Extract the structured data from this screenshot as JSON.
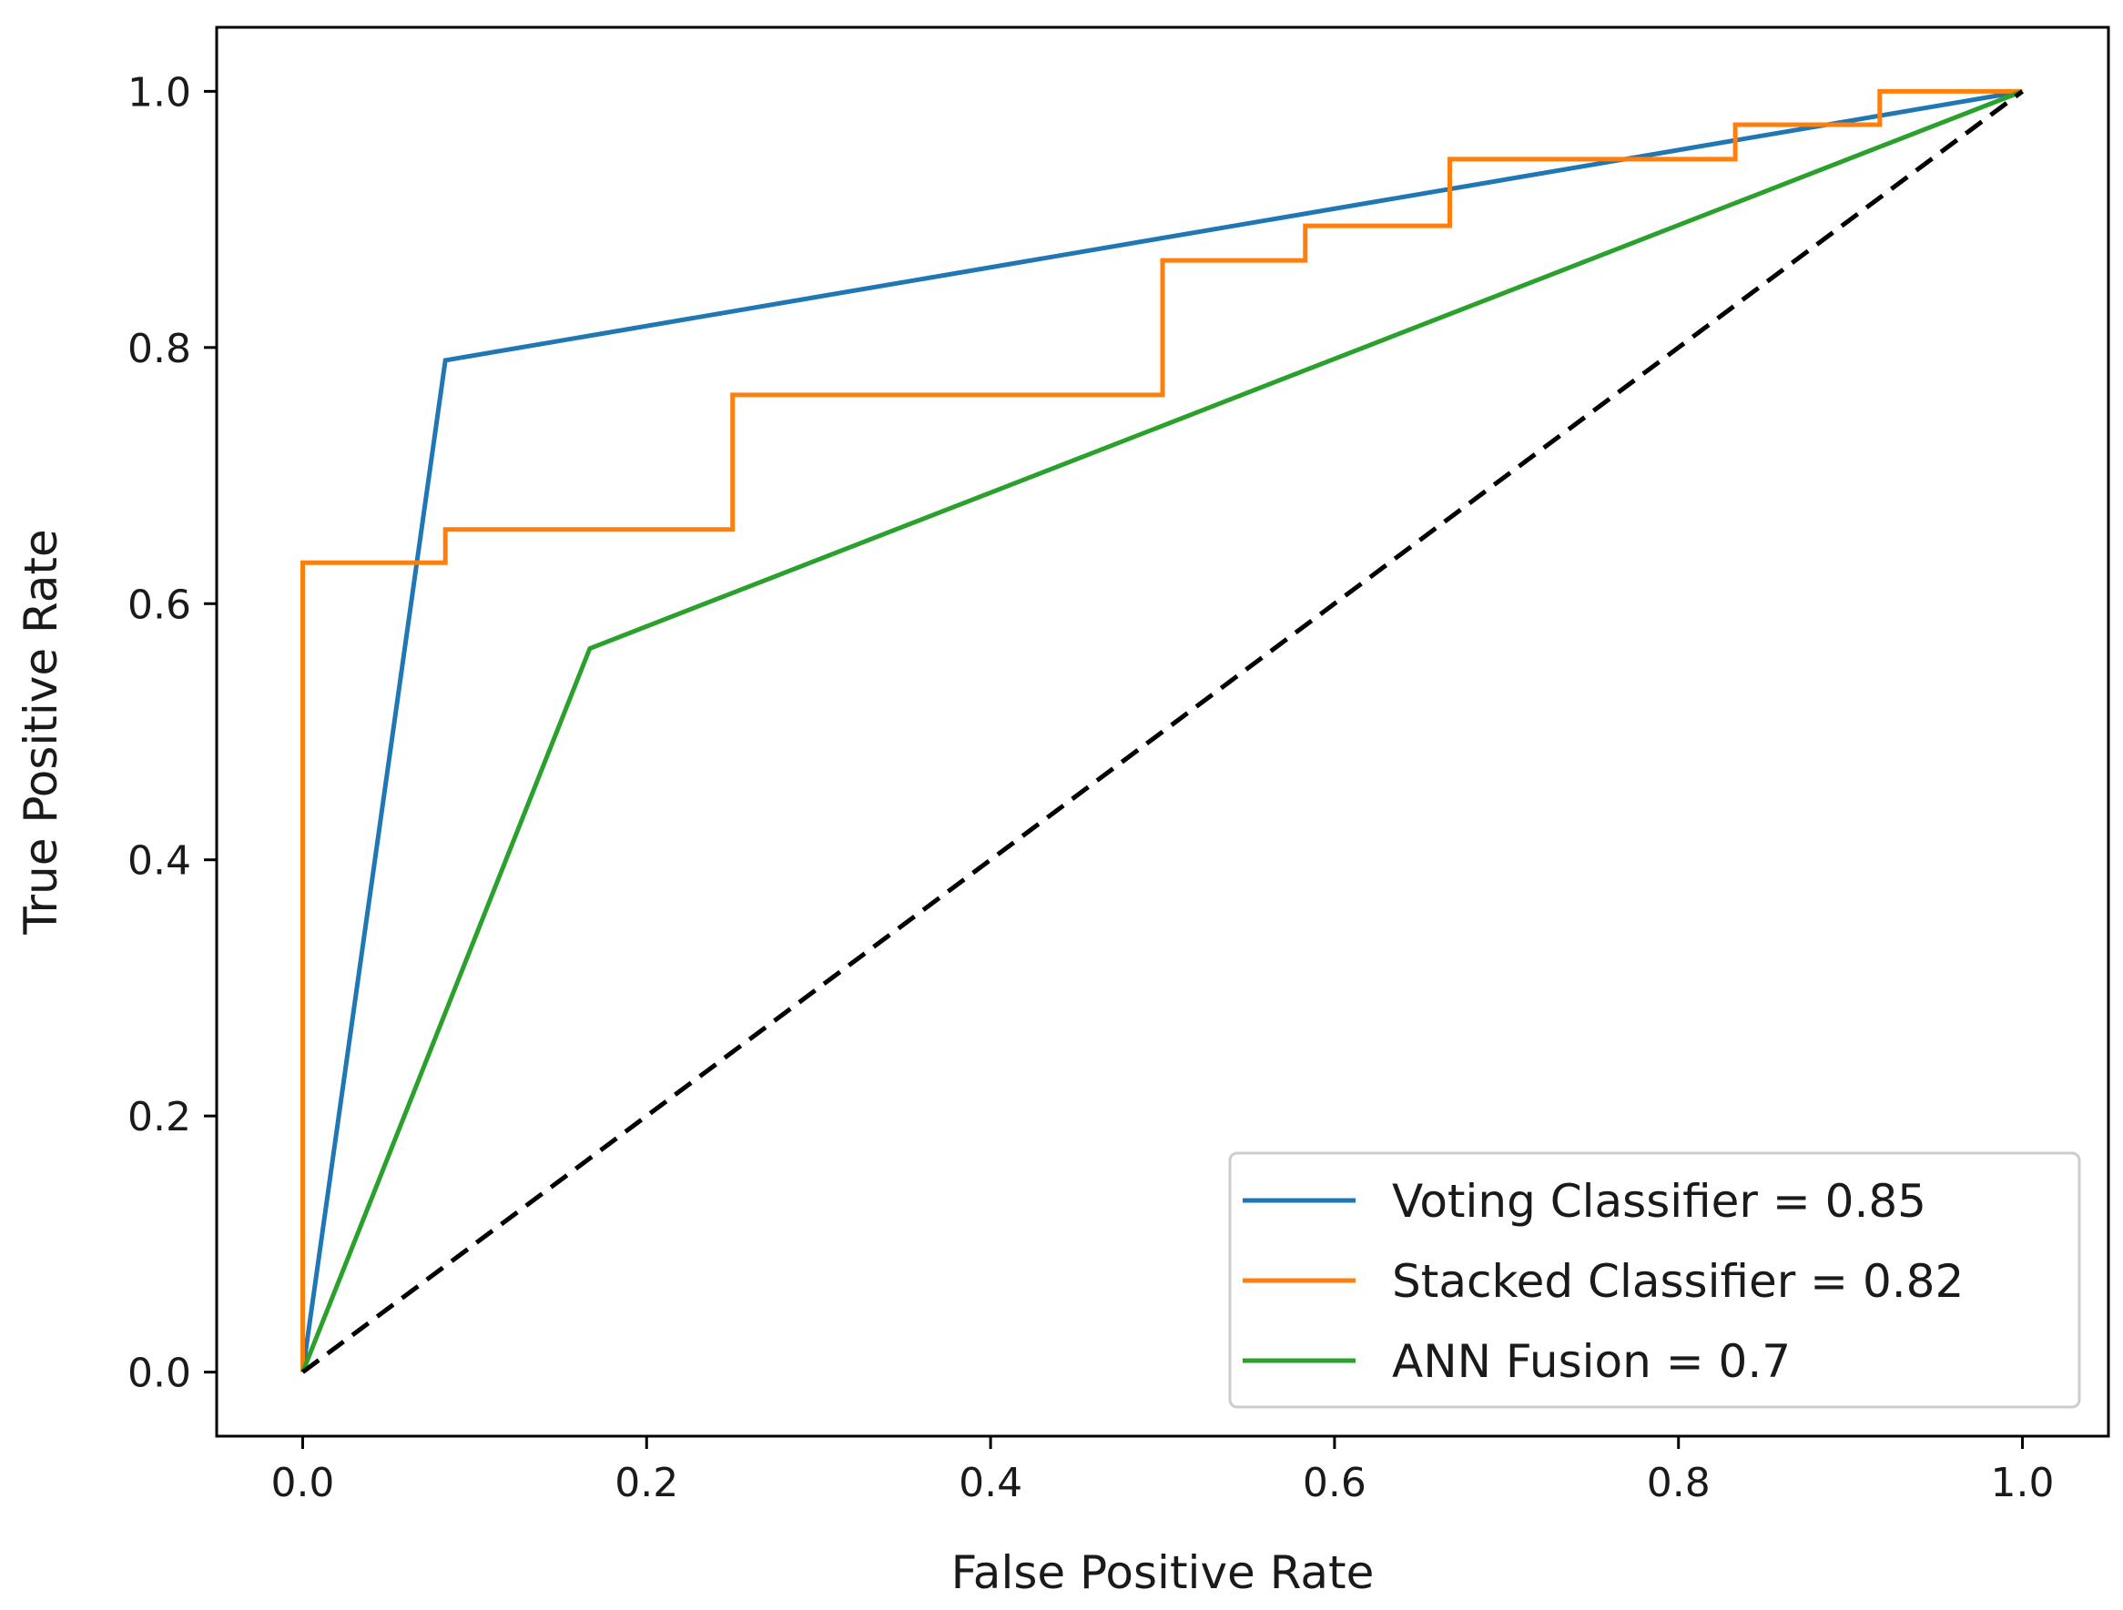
{
  "chart_data": {
    "type": "line",
    "title": "",
    "xlabel": "False Positive Rate",
    "ylabel": "True Positive Rate",
    "xlim": [
      -0.05,
      1.05
    ],
    "ylim": [
      -0.05,
      1.05
    ],
    "xticks": [
      0.0,
      0.2,
      0.4,
      0.6,
      0.8,
      1.0
    ],
    "yticks": [
      0.0,
      0.2,
      0.4,
      0.6,
      0.8,
      1.0
    ],
    "xtick_labels": [
      "0.0",
      "0.2",
      "0.4",
      "0.6",
      "0.8",
      "1.0"
    ],
    "ytick_labels": [
      "0.0",
      "0.2",
      "0.4",
      "0.6",
      "0.8",
      "1.0"
    ],
    "grid": false,
    "legend_position": "lower-right",
    "series": [
      {
        "name": "Voting Classifier = 0.85",
        "color": "#1f77b4",
        "x": [
          0.0,
          0.083,
          1.0
        ],
        "y": [
          0.0,
          0.79,
          1.0
        ]
      },
      {
        "name": "Stacked Classifier = 0.82",
        "color": "#ff7f0e",
        "x": [
          0.0,
          0.0,
          0.083,
          0.083,
          0.25,
          0.25,
          0.5,
          0.5,
          0.583,
          0.583,
          0.667,
          0.667,
          0.833,
          0.833,
          0.917,
          0.917,
          1.0
        ],
        "y": [
          0.0,
          0.632,
          0.632,
          0.658,
          0.658,
          0.763,
          0.763,
          0.868,
          0.868,
          0.895,
          0.895,
          0.947,
          0.947,
          0.974,
          0.974,
          1.0,
          1.0
        ]
      },
      {
        "name": "ANN Fusion = 0.7",
        "color": "#2ca02c",
        "x": [
          0.0,
          0.167,
          1.0
        ],
        "y": [
          0.0,
          0.565,
          1.0
        ]
      },
      {
        "name": "chance",
        "color": "#000000",
        "dashed": true,
        "in_legend": false,
        "x": [
          0.0,
          1.0
        ],
        "y": [
          0.0,
          1.0
        ]
      }
    ]
  }
}
